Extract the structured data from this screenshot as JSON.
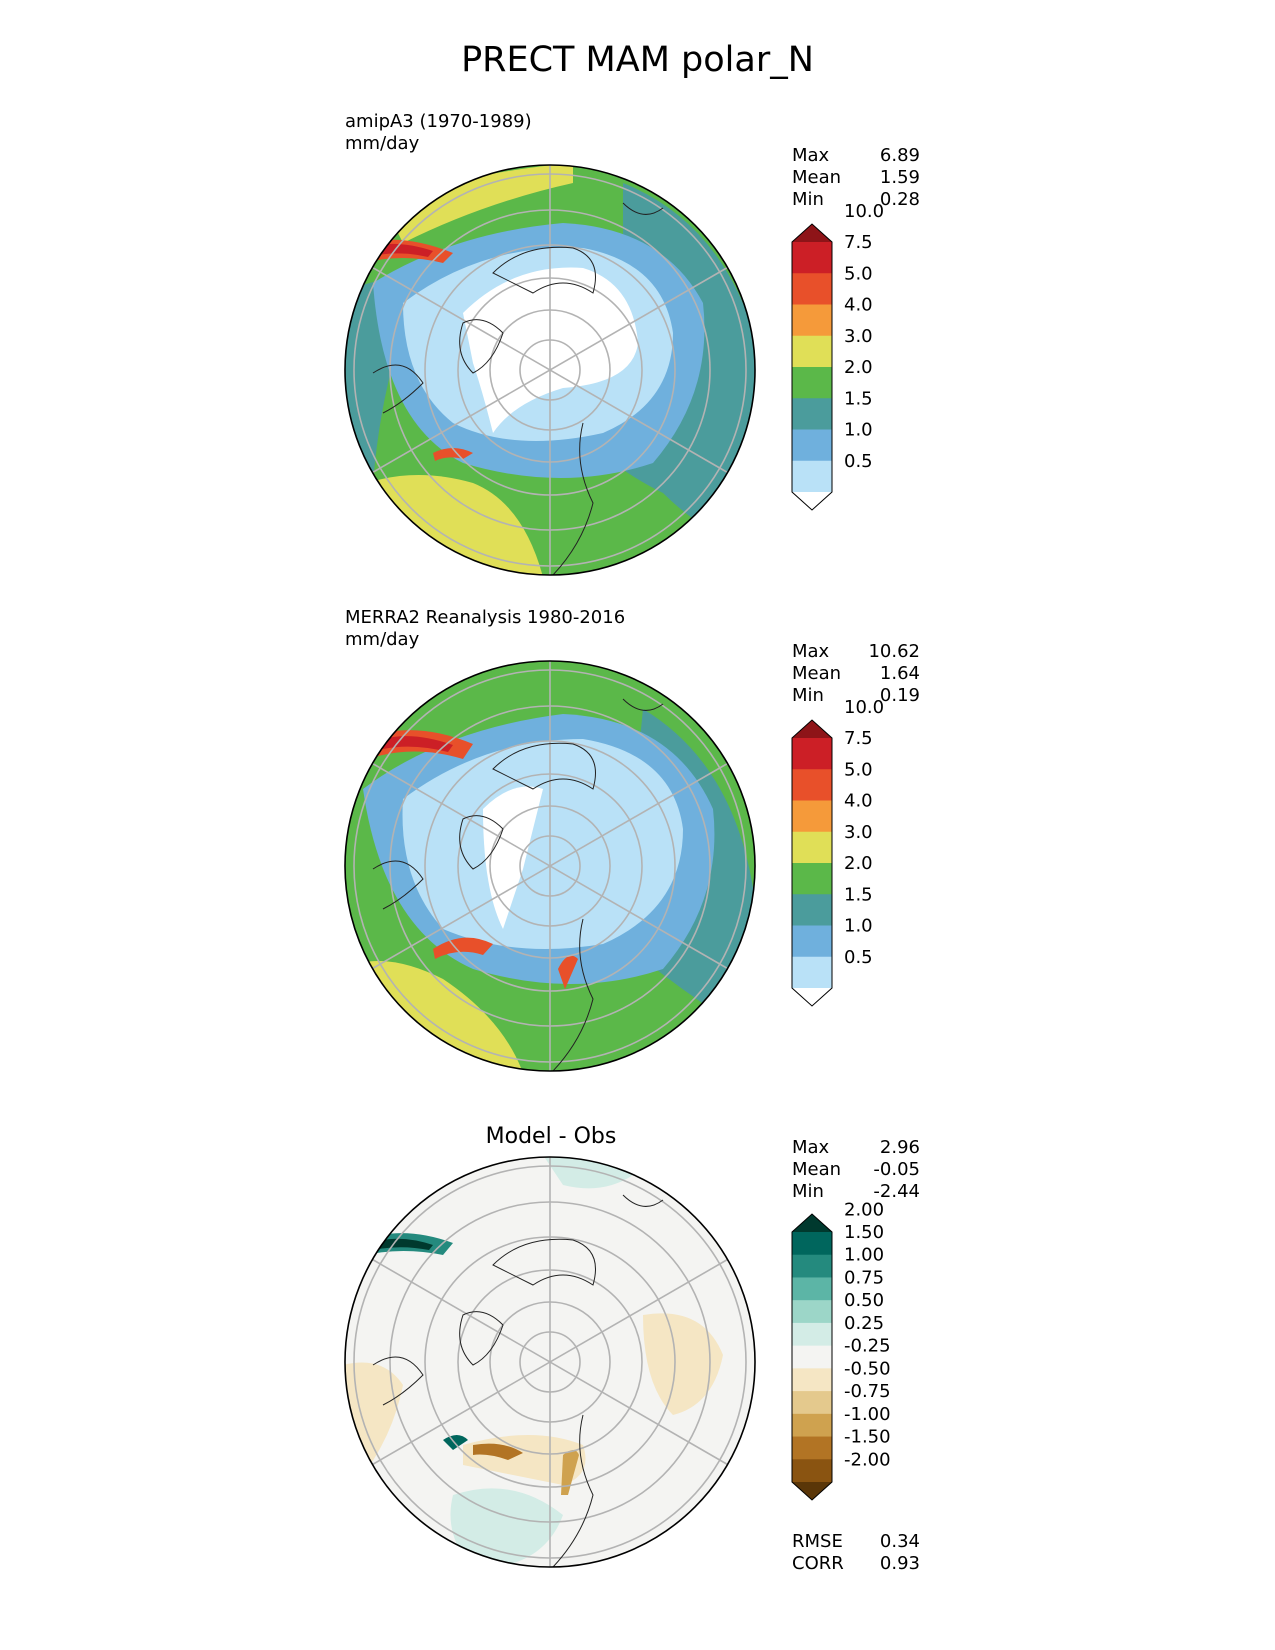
{
  "title": "PRECT MAM polar_N",
  "panels": {
    "test": {
      "name": "amipA3 (1970-1989)",
      "units": "mm/day",
      "stats": {
        "max_label": "Max",
        "max": "6.89",
        "mean_label": "Mean",
        "mean": "1.59",
        "min_label": "Min",
        "min": "0.28"
      }
    },
    "ref": {
      "name": "MERRA2 Reanalysis 1980-2016",
      "units": "mm/day",
      "stats": {
        "max_label": "Max",
        "max": "10.62",
        "mean_label": "Mean",
        "mean": "1.64",
        "min_label": "Min",
        "min": "0.19"
      }
    },
    "diff": {
      "title": "Model - Obs",
      "stats": {
        "max_label": "Max",
        "max": "2.96",
        "mean_label": "Mean",
        "mean": "-0.05",
        "min_label": "Min",
        "min": "-2.44"
      },
      "metrics": {
        "rmse_label": "RMSE",
        "rmse": "0.34",
        "corr_label": "CORR",
        "corr": "0.93"
      }
    }
  },
  "chart_data": [
    {
      "type": "heatmap",
      "projection": "north-polar-stereographic",
      "title": "amipA3 (1970-1989)",
      "units": "mm/day",
      "colorbar": {
        "levels": [
          "0.5",
          "1.0",
          "1.5",
          "2.0",
          "3.0",
          "4.0",
          "5.0",
          "7.5",
          "10.0"
        ],
        "colors": [
          "#ffffff",
          "#b9e1f7",
          "#6fb0dd",
          "#4b9c9c",
          "#5bb849",
          "#e0df57",
          "#f59a3a",
          "#e8502a",
          "#cc1f26",
          "#8e1418"
        ],
        "extend": "both"
      },
      "regions": {
        "white_high_arctic": "#ffffff",
        "light_blue_ring": "#b9e1f7",
        "blue_ring": "#6fb0dd",
        "teal_ring": "#4b9c9c",
        "green_ring": "#5bb849",
        "yellow_outer": "#e0df57"
      },
      "max": 6.89,
      "mean": 1.59,
      "min": 0.28
    },
    {
      "type": "heatmap",
      "projection": "north-polar-stereographic",
      "title": "MERRA2 Reanalysis 1980-2016",
      "units": "mm/day",
      "colorbar": {
        "levels": [
          "0.5",
          "1.0",
          "1.5",
          "2.0",
          "3.0",
          "4.0",
          "5.0",
          "7.5",
          "10.0"
        ],
        "colors": [
          "#ffffff",
          "#b9e1f7",
          "#6fb0dd",
          "#4b9c9c",
          "#5bb849",
          "#e0df57",
          "#f59a3a",
          "#e8502a",
          "#cc1f26",
          "#8e1418"
        ],
        "extend": "both"
      },
      "max": 10.62,
      "mean": 1.64,
      "min": 0.19
    },
    {
      "type": "heatmap",
      "projection": "north-polar-stereographic",
      "title": "Model - Obs",
      "colorbar": {
        "levels": [
          "-2.00",
          "-1.50",
          "-1.00",
          "-0.75",
          "-0.50",
          "-0.25",
          "0.25",
          "0.50",
          "0.75",
          "1.00",
          "1.50",
          "2.00"
        ],
        "colors": [
          "#5a3608",
          "#8a5411",
          "#b27424",
          "#cfa24f",
          "#e4c98d",
          "#f5e6c4",
          "#f4f4f2",
          "#d3ece6",
          "#9cd6c8",
          "#5cb5a6",
          "#248a7e",
          "#00665d",
          "#00392e"
        ],
        "extend": "both"
      },
      "max": 2.96,
      "mean": -0.05,
      "min": -2.44,
      "rmse": 0.34,
      "corr": 0.93
    }
  ]
}
